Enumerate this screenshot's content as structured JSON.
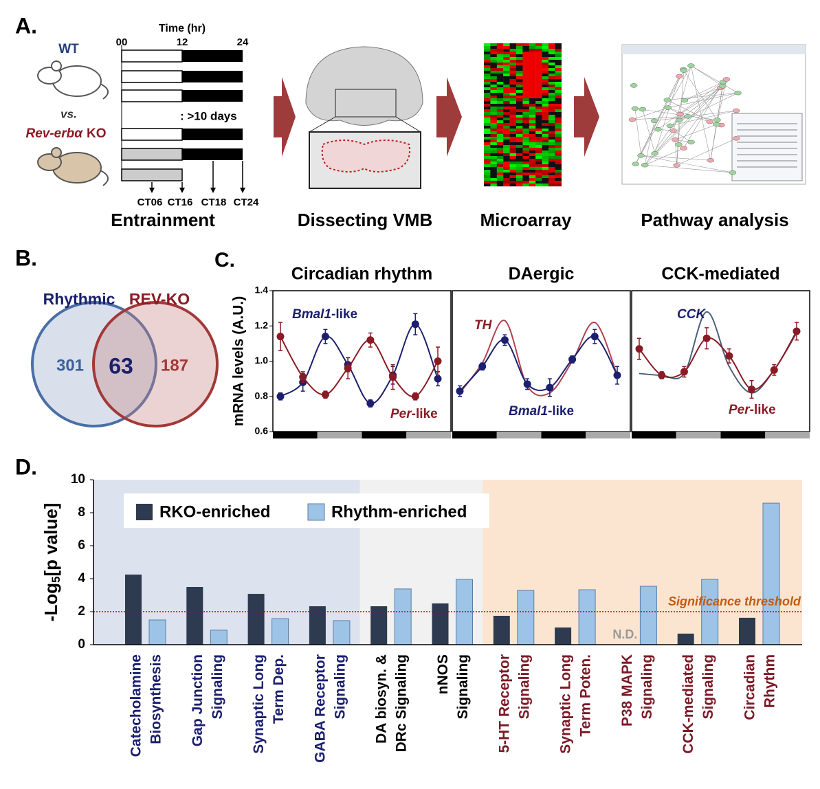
{
  "panels": {
    "A": {
      "label": "A.",
      "time_label": "Time (hr)",
      "time_ticks": [
        "00",
        "12",
        "24"
      ],
      "wt": "WT",
      "vs": "vs.",
      "ko": [
        "Rev-erbα",
        "KO"
      ],
      "days": ": >10 days",
      "ct_labels": [
        "CT06",
        "CT16",
        "CT18",
        "CT24"
      ],
      "steps": [
        "Entrainment",
        "Dissecting VMB",
        "Microarray",
        "Pathway analysis"
      ]
    },
    "B": {
      "label": "B.",
      "sets": [
        "Rhythmic",
        "REV-KO"
      ],
      "counts": [
        301,
        63,
        187
      ]
    },
    "C": {
      "label": "C."
    },
    "D": {
      "label": "D."
    }
  },
  "chart_data": [
    {
      "type": "line",
      "title": "Circadian rhythm",
      "ylabel": "mRNA levels (A.U.)",
      "ylim": [
        0.6,
        1.4
      ],
      "yticks": [
        {
          "value": 0.6,
          "label": "0.6"
        },
        {
          "value": 0.8,
          "label": "0.8"
        },
        {
          "value": 1.0,
          "label": "1.0"
        },
        {
          "value": 1.2,
          "label": "1.2"
        },
        {
          "value": 1.4,
          "label": "1.4"
        }
      ],
      "series": [
        {
          "color": "#1b1f6e",
          "markers": true,
          "values": [
            0.8,
            0.88,
            1.14,
            0.98,
            0.76,
            0.92,
            1.21,
            0.9
          ],
          "errors": [
            0.02,
            0.05,
            0.04,
            0.04,
            0.02,
            0.05,
            0.06,
            0.04
          ]
        },
        {
          "color": "#8b1a24",
          "markers": true,
          "values": [
            1.14,
            0.91,
            0.81,
            0.96,
            1.12,
            0.91,
            0.8,
            1.0
          ],
          "errors": [
            0.08,
            0.03,
            0.02,
            0.06,
            0.04,
            0.07,
            0.02,
            0.08
          ]
        }
      ],
      "annotations": [
        {
          "text": [
            "Bmal1",
            "-like"
          ],
          "color": "#1b1f6e"
        },
        {
          "text": [
            "Per",
            "-like"
          ],
          "color": "#8b1a24"
        }
      ]
    },
    {
      "type": "line",
      "title": "DAergic",
      "ylim": [
        0.6,
        1.4
      ],
      "series": [
        {
          "color": "#b04050",
          "markers": false,
          "values": [
            0.82,
            0.99,
            1.23,
            0.86,
            0.82,
            1.0,
            1.22,
            0.92
          ]
        },
        {
          "color": "#1b1f6e",
          "markers": true,
          "values": [
            0.83,
            0.97,
            1.12,
            0.87,
            0.85,
            1.01,
            1.14,
            0.92
          ],
          "errors": [
            0.03,
            0.02,
            0.03,
            0.03,
            0.05,
            0.02,
            0.04,
            0.05
          ]
        }
      ],
      "annotations": [
        {
          "text": [
            "TH"
          ],
          "color": "#8b1a24"
        },
        {
          "text": [
            "Bmal1",
            "-like"
          ],
          "color": "#1b1f6e"
        }
      ]
    },
    {
      "type": "line",
      "title": "CCK-mediated",
      "ylim": [
        0.6,
        1.4
      ],
      "series": [
        {
          "color": "#4a5f78",
          "markers": false,
          "values": [
            0.93,
            0.92,
            0.93,
            1.28,
            0.97,
            0.82,
            0.95,
            1.16
          ]
        },
        {
          "color": "#8b1a24",
          "markers": true,
          "values": [
            1.07,
            0.92,
            0.94,
            1.13,
            1.03,
            0.84,
            0.95,
            1.17
          ],
          "errors": [
            0.06,
            0.02,
            0.03,
            0.06,
            0.04,
            0.05,
            0.03,
            0.05
          ]
        }
      ],
      "annotations": [
        {
          "text": [
            "CCK"
          ],
          "color": "#1b1f6e"
        },
        {
          "text": [
            "Per",
            "-like"
          ],
          "color": "#8b1a24"
        }
      ]
    },
    {
      "type": "bar",
      "ylabel": [
        "-Log",
        "5",
        "[p value]"
      ],
      "ylim": [
        0,
        10
      ],
      "yticks": [
        0,
        2,
        4,
        6,
        8,
        10
      ],
      "legend": "upper left",
      "categories": [
        [
          "Catecholamine",
          "Biosynthesis"
        ],
        [
          "Gap Junction",
          "Signaling"
        ],
        [
          "Synaptic Long",
          "Term Dep."
        ],
        [
          "GABA Receptor",
          "Signaling"
        ],
        [
          "DA biosyn. &",
          "DRc Signaling"
        ],
        [
          "nNOS",
          "Signaling"
        ],
        [
          "5-HT Receptor",
          "Signaling"
        ],
        [
          "Synaptic Long",
          "Term Poten."
        ],
        [
          "P38 MAPK",
          "Signaling"
        ],
        [
          "CCK-mediated",
          "Signaling"
        ],
        [
          "Circadian",
          "Rhythm"
        ]
      ],
      "category_groups": [
        0,
        0,
        0,
        0,
        1,
        1,
        2,
        2,
        2,
        2,
        2
      ],
      "group_colors": {
        "background": [
          "#dde3ee",
          "#f1f1f1",
          "#fbe5d1"
        ],
        "text": [
          "#1b1f6e",
          "#000000",
          "#7a1a26"
        ]
      },
      "series": [
        {
          "name": "RKO-enriched",
          "color": "#2e3a4f",
          "values": [
            4.25,
            3.5,
            3.08,
            2.33,
            2.33,
            2.5,
            1.75,
            1.04,
            null,
            0.67,
            1.63
          ]
        },
        {
          "name": "Rhythm-enriched",
          "color": "#9dc3e6",
          "values": [
            1.5,
            0.88,
            1.58,
            1.46,
            3.38,
            3.96,
            3.29,
            3.33,
            3.54,
            3.96,
            8.58
          ]
        }
      ],
      "missing_label": "N.D.",
      "threshold": {
        "value": 2,
        "label": "Significance threshold",
        "color": "#c00000",
        "label_color": "#c55a11"
      }
    }
  ]
}
